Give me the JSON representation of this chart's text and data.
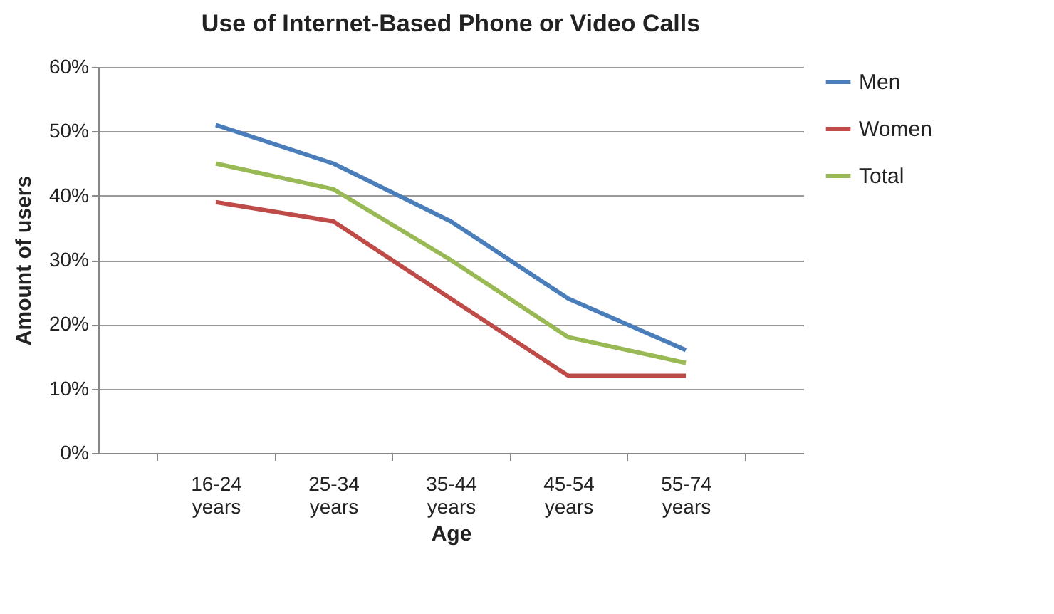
{
  "chart_data": {
    "type": "line",
    "title": "Use of Internet-Based Phone or Video Calls",
    "xlabel": "Age",
    "ylabel": "Amount of users",
    "categories": [
      "16-24 years",
      "25-34 years",
      "35-44 years",
      "45-54 years",
      "55-74 years"
    ],
    "series": [
      {
        "name": "Men",
        "color": "#4a7ebb",
        "values": [
          51,
          45,
          36,
          24,
          16
        ]
      },
      {
        "name": "Women",
        "color": "#be4b48",
        "values": [
          39,
          36,
          24,
          12,
          12
        ]
      },
      {
        "name": "Total",
        "color": "#98b954",
        "values": [
          45,
          41,
          30,
          18,
          14
        ]
      }
    ],
    "ylim": [
      0,
      60
    ],
    "yticks": [
      {
        "value": 0,
        "label": "0%"
      },
      {
        "value": 10,
        "label": "10%"
      },
      {
        "value": 20,
        "label": "20%"
      },
      {
        "value": 30,
        "label": "30%"
      },
      {
        "value": 40,
        "label": "40%"
      },
      {
        "value": 50,
        "label": "50%"
      },
      {
        "value": 60,
        "label": "60%"
      }
    ],
    "grid": "y",
    "legend": "right",
    "marker": "none",
    "line_style": "solid"
  }
}
